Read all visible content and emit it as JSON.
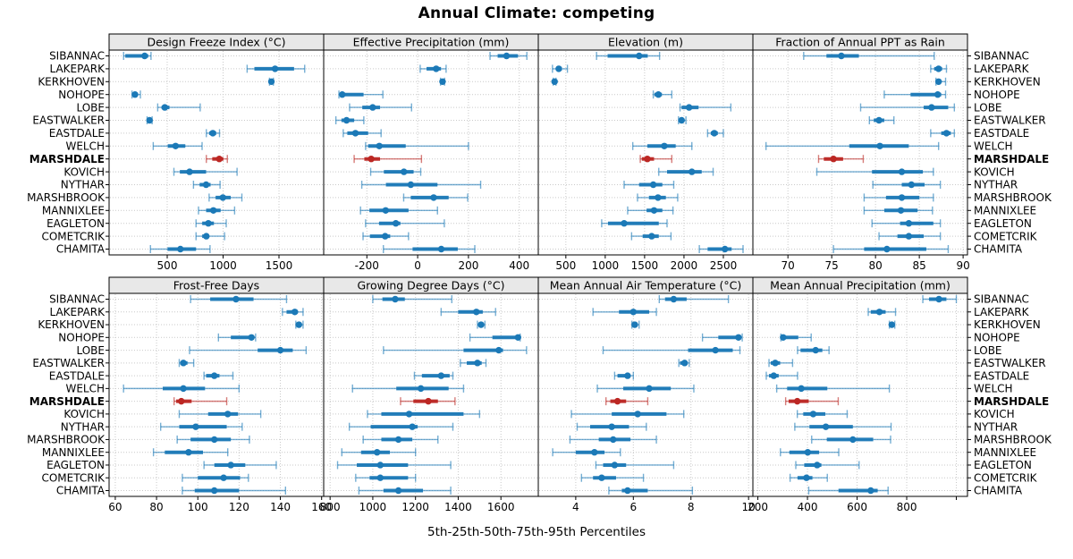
{
  "title": "Annual Climate: competing",
  "caption": "5th-25th-50th-75th-95th Percentiles",
  "percentile_labels": [
    "5th",
    "25th",
    "50th",
    "75th",
    "95th"
  ],
  "highlight_station": "MARSHDALE",
  "colors": {
    "series": "#1b79b7",
    "highlight": "#bc2723",
    "strip_bg": "#e8e8e8",
    "panel_border": "#000000",
    "grid": "#c9c9c9",
    "text": "#000000"
  },
  "chart_data": {
    "type": "dotplot-percentile-trellis",
    "layout": {
      "rows": 2,
      "cols": 4
    },
    "stations": [
      "SIBANNAC",
      "LAKEPARK",
      "KERKHOVEN",
      "NOHOPE",
      "LOBE",
      "EASTWALKER",
      "EASTDALE",
      "WELCH",
      "MARSHDALE",
      "KOVICH",
      "NYTHAR",
      "MARSHBROOK",
      "MANNIXLEE",
      "EAGLETON",
      "COMETCRIK",
      "CHAMITA"
    ],
    "panels": [
      {
        "title": "Design Freeze Index (°C)",
        "row": 0,
        "col": 0,
        "xlim": [
          -20,
          1900
        ],
        "xticks": [
          500,
          1000,
          1500
        ],
        "xtick_labels": [
          "500",
          "1000",
          "1500"
        ],
        "values": {
          "SIBANNAC": [
            110,
            125,
            298,
            330,
            355
          ],
          "LAKEPARK": [
            1215,
            1280,
            1465,
            1635,
            1730
          ],
          "KERKHOVEN": [
            1415,
            1425,
            1432,
            1440,
            1450
          ],
          "NOHOPE": [
            185,
            200,
            212,
            235,
            260
          ],
          "LOBE": [
            415,
            450,
            478,
            520,
            795
          ],
          "EASTWALKER": [
            320,
            335,
            342,
            350,
            365
          ],
          "EASTDALE": [
            850,
            875,
            908,
            938,
            968
          ],
          "WELCH": [
            375,
            505,
            575,
            662,
            812
          ],
          "MARSHDALE": [
            850,
            903,
            966,
            1003,
            1038
          ],
          "KOVICH": [
            560,
            613,
            700,
            848,
            1125
          ],
          "NYTHAR": [
            735,
            790,
            848,
            888,
            973
          ],
          "MARSHBROOK": [
            875,
            933,
            998,
            1068,
            1168
          ],
          "MANNIXLEE": [
            780,
            848,
            913,
            978,
            1103
          ],
          "EAGLETON": [
            758,
            813,
            868,
            918,
            1028
          ],
          "COMETCRIK": [
            758,
            813,
            850,
            873,
            1013
          ],
          "CHAMITA": [
            350,
            503,
            618,
            758,
            883
          ]
        }
      },
      {
        "title": "Effective Precipitation (mm)",
        "row": 0,
        "col": 1,
        "xlim": [
          -370,
          475
        ],
        "xticks": [
          -200,
          0,
          200,
          400
        ],
        "xtick_labels": [
          "-200",
          "0",
          "200",
          "400"
        ],
        "values": {
          "SIBANNAC": [
            285,
            315,
            350,
            395,
            430
          ],
          "LAKEPARK": [
            10,
            35,
            73,
            92,
            112
          ],
          "KERKHOVEN": [
            90,
            95,
            98,
            102,
            106
          ],
          "NOHOPE": [
            -310,
            -303,
            -297,
            -213,
            -137
          ],
          "LOBE": [
            -268,
            -218,
            -177,
            -148,
            -24
          ],
          "EASTWALKER": [
            -322,
            -300,
            -280,
            -250,
            -212
          ],
          "EASTDALE": [
            -293,
            -277,
            -245,
            -195,
            -144
          ],
          "WELCH": [
            -205,
            -195,
            -151,
            -47,
            200
          ],
          "MARSHDALE": [
            -250,
            -210,
            -183,
            -148,
            15
          ],
          "KOVICH": [
            -185,
            -133,
            -54,
            -16,
            12
          ],
          "NYTHAR": [
            -220,
            -125,
            -27,
            78,
            248
          ],
          "MARSHBROOK": [
            -55,
            -27,
            63,
            122,
            197
          ],
          "MANNIXLEE": [
            -225,
            -190,
            -126,
            -36,
            78
          ],
          "EAGLETON": [
            -205,
            -152,
            -86,
            -68,
            105
          ],
          "COMETCRIK": [
            -215,
            -188,
            -128,
            -108,
            -36
          ],
          "CHAMITA": [
            -135,
            -20,
            93,
            158,
            225
          ]
        }
      },
      {
        "title": "Elevation (m)",
        "row": 0,
        "col": 2,
        "xlim": [
          150,
          2875
        ],
        "xticks": [
          500,
          1000,
          1500,
          2000,
          2500
        ],
        "xtick_labels": [
          "500",
          "1000",
          "1500",
          "2000",
          "2500"
        ],
        "values": {
          "SIBANNAC": [
            890,
            1030,
            1430,
            1540,
            1690
          ],
          "LAKEPARK": [
            330,
            380,
            410,
            450,
            520
          ],
          "KERKHOVEN": [
            340,
            350,
            357,
            365,
            375
          ],
          "NOHOPE": [
            1610,
            1625,
            1675,
            1720,
            1845
          ],
          "LOBE": [
            1950,
            1970,
            2065,
            2185,
            2595
          ],
          "EASTWALKER": [
            1930,
            1950,
            1970,
            2000,
            2025
          ],
          "EASTDALE": [
            2300,
            2340,
            2385,
            2430,
            2500
          ],
          "WELCH": [
            1350,
            1535,
            1750,
            1895,
            2100
          ],
          "MARSHDALE": [
            1445,
            1465,
            1535,
            1620,
            1845
          ],
          "KOVICH": [
            1680,
            1785,
            2100,
            2225,
            2370
          ],
          "NYTHAR": [
            1240,
            1430,
            1610,
            1725,
            1870
          ],
          "MARSHBROOK": [
            1410,
            1555,
            1670,
            1770,
            1920
          ],
          "MANNIXLEE": [
            1285,
            1525,
            1620,
            1725,
            1860
          ],
          "EAGLETON": [
            955,
            1035,
            1240,
            1680,
            1785
          ],
          "COMETCRIK": [
            1335,
            1475,
            1590,
            1680,
            1835
          ],
          "CHAMITA": [
            2195,
            2300,
            2520,
            2605,
            2750
          ]
        }
      },
      {
        "title": "Fraction of Annual PPT as Rain",
        "row": 0,
        "col": 3,
        "xlim": [
          66,
          90.5
        ],
        "xticks": [
          70,
          75,
          80,
          85,
          90
        ],
        "xtick_labels": [
          "70",
          "75",
          "80",
          "85",
          "90"
        ],
        "values": {
          "SIBANNAC": [
            71.8,
            74.4,
            76.1,
            78.1,
            86.7
          ],
          "LAKEPARK": [
            86.3,
            86.7,
            87.2,
            87.6,
            88.1
          ],
          "KERKHOVEN": [
            86.9,
            87.0,
            87.2,
            87.4,
            88.0
          ],
          "NOHOPE": [
            81.0,
            84.0,
            87.1,
            87.5,
            88.0
          ],
          "LOBE": [
            78.3,
            85.5,
            86.4,
            88.3,
            89.0
          ],
          "EASTWALKER": [
            79.3,
            79.8,
            80.4,
            81.0,
            82.1
          ],
          "EASTDALE": [
            86.3,
            87.5,
            88.1,
            88.6,
            89.0
          ],
          "WELCH": [
            67.5,
            77.0,
            80.5,
            83.8,
            87.2
          ],
          "MARSHDALE": [
            73.5,
            74.1,
            75.2,
            76.3,
            78.6
          ],
          "KOVICH": [
            73.3,
            79.6,
            83.0,
            85.4,
            86.6
          ],
          "NYTHAR": [
            79.7,
            83.0,
            84.1,
            85.6,
            87.4
          ],
          "MARSHBROOK": [
            78.7,
            81.2,
            83.0,
            85.0,
            86.6
          ],
          "MANNIXLEE": [
            78.7,
            81.0,
            82.9,
            84.8,
            86.5
          ],
          "EAGLETON": [
            79.6,
            82.8,
            83.8,
            86.6,
            87.4
          ],
          "COMETCRIK": [
            80.4,
            82.5,
            83.8,
            85.5,
            87.4
          ],
          "CHAMITA": [
            75.2,
            78.7,
            81.3,
            85.8,
            88.3
          ]
        }
      },
      {
        "title": "Frost-Free Days",
        "row": 1,
        "col": 0,
        "xlim": [
          57,
          161
        ],
        "xticks": [
          60,
          80,
          100,
          120,
          140,
          160
        ],
        "xtick_labels": [
          "60",
          "80",
          "100",
          "120",
          "140",
          "160"
        ],
        "values": {
          "SIBANNAC": [
            96.5,
            106,
            118.5,
            127,
            143
          ],
          "LAKEPARK": [
            141,
            143,
            147,
            148.5,
            151
          ],
          "KERKHOVEN": [
            147.5,
            148,
            149,
            149.5,
            151
          ],
          "NOHOPE": [
            110,
            116,
            126,
            126.5,
            128
          ],
          "LOBE": [
            96,
            129,
            140,
            146,
            152.5
          ],
          "EASTWALKER": [
            91,
            91.5,
            93,
            95,
            98
          ],
          "EASTDALE": [
            103,
            104,
            108,
            110.5,
            117
          ],
          "WELCH": [
            64,
            83,
            93,
            103.5,
            120
          ],
          "MARSHDALE": [
            88.5,
            89.5,
            92,
            97,
            114
          ],
          "KOVICH": [
            91,
            105,
            114.5,
            119.5,
            130.5
          ],
          "NYTHAR": [
            82,
            91,
            99,
            114,
            121.5
          ],
          "MARSHBROOK": [
            90,
            96.5,
            108,
            116,
            125
          ],
          "MANNIXLEE": [
            78.5,
            84,
            95.5,
            102.5,
            114.5
          ],
          "EAGLETON": [
            103,
            108,
            116,
            123,
            138
          ],
          "COMETCRIK": [
            92.5,
            100,
            112.5,
            120.5,
            124.5
          ],
          "CHAMITA": [
            92.5,
            98.5,
            108,
            120,
            142.5
          ]
        }
      },
      {
        "title": "Growing Degree Days (°C)",
        "row": 1,
        "col": 1,
        "xlim": [
          770,
          1775
        ],
        "xticks": [
          800,
          1000,
          1200,
          1400,
          1600
        ],
        "xtick_labels": [
          "800",
          "1000",
          "1200",
          "1400",
          "1600"
        ],
        "values": {
          "SIBANNAC": [
            1000,
            1045,
            1105,
            1150,
            1370
          ],
          "LAKEPARK": [
            1320,
            1400,
            1485,
            1515,
            1575
          ],
          "KERKHOVEN": [
            1490,
            1498,
            1507,
            1515,
            1525
          ],
          "NOHOPE": [
            1455,
            1560,
            1680,
            1685,
            1690
          ],
          "LOBE": [
            1050,
            1425,
            1590,
            1610,
            1720
          ],
          "EASTWALKER": [
            1410,
            1440,
            1490,
            1510,
            1530
          ],
          "EASTDALE": [
            1195,
            1230,
            1320,
            1360,
            1375
          ],
          "WELCH": [
            905,
            1110,
            1225,
            1355,
            1425
          ],
          "MARSHDALE": [
            1130,
            1190,
            1260,
            1305,
            1385
          ],
          "KOVICH": [
            975,
            1040,
            1170,
            1425,
            1500
          ],
          "NYTHAR": [
            890,
            990,
            1185,
            1210,
            1375
          ],
          "MARSHBROOK": [
            955,
            1040,
            1120,
            1185,
            1305
          ],
          "MANNIXLEE": [
            855,
            945,
            1020,
            1080,
            1200
          ],
          "EAGLETON": [
            835,
            925,
            1035,
            1165,
            1365
          ],
          "COMETCRIK": [
            920,
            985,
            1035,
            1165,
            1200
          ],
          "CHAMITA": [
            935,
            1050,
            1120,
            1235,
            1365
          ]
        }
      },
      {
        "title": "Mean Annual Air Temperature (°C)",
        "row": 1,
        "col": 2,
        "xlim": [
          2.7,
          10.15
        ],
        "xticks": [
          4,
          6,
          8,
          10
        ],
        "xtick_labels": [
          "4",
          "6",
          "8",
          "10"
        ],
        "values": {
          "SIBANNAC": [
            6.9,
            7.1,
            7.4,
            7.85,
            9.3
          ],
          "LAKEPARK": [
            4.6,
            5.5,
            6.0,
            6.55,
            6.8
          ],
          "KERKHOVEN": [
            5.95,
            6.0,
            6.05,
            6.1,
            6.2
          ],
          "NOHOPE": [
            8.4,
            8.95,
            9.65,
            9.72,
            9.78
          ],
          "LOBE": [
            4.95,
            7.9,
            8.85,
            9.45,
            9.7
          ],
          "EASTWALKER": [
            7.58,
            7.62,
            7.78,
            7.88,
            7.94
          ],
          "EASTDALE": [
            5.35,
            5.45,
            5.8,
            5.9,
            6.0
          ],
          "WELCH": [
            4.75,
            5.65,
            6.55,
            7.3,
            8.1
          ],
          "MARSHDALE": [
            5.05,
            5.2,
            5.45,
            5.75,
            6.5
          ],
          "KOVICH": [
            3.85,
            5.25,
            6.15,
            7.15,
            7.75
          ],
          "NYTHAR": [
            4.05,
            4.5,
            5.25,
            5.85,
            6.45
          ],
          "MARSHBROOK": [
            3.8,
            4.8,
            5.3,
            5.9,
            6.8
          ],
          "MANNIXLEE": [
            3.2,
            4.0,
            4.65,
            5.0,
            5.55
          ],
          "EAGLETON": [
            4.7,
            4.95,
            5.35,
            5.75,
            7.4
          ],
          "COMETCRIK": [
            4.2,
            4.6,
            4.9,
            5.4,
            6.35
          ],
          "CHAMITA": [
            5.15,
            5.6,
            5.8,
            6.5,
            8.05
          ]
        }
      },
      {
        "title": "Mean Annual Precipitation (mm)",
        "row": 1,
        "col": 3,
        "xlim": [
          180,
          1045
        ],
        "xticks": [
          200,
          400,
          600,
          800,
          1000
        ],
        "xtick_labels": [
          "200",
          "400",
          "600",
          "800",
          ""
        ],
        "values": {
          "SIBANNAC": [
            865,
            890,
            930,
            960,
            1000
          ],
          "LAKEPARK": [
            645,
            655,
            690,
            715,
            755
          ],
          "KERKHOVEN": [
            730,
            735,
            740,
            745,
            752
          ],
          "NOHOPE": [
            293,
            297,
            302,
            363,
            415
          ],
          "LOBE": [
            360,
            372,
            433,
            460,
            487
          ],
          "EASTWALKER": [
            245,
            252,
            270,
            290,
            340
          ],
          "EASTDALE": [
            234,
            245,
            264,
            284,
            360
          ],
          "WELCH": [
            276,
            318,
            375,
            480,
            730
          ],
          "MARSHDALE": [
            312,
            324,
            359,
            405,
            524
          ],
          "KOVICH": [
            359,
            383,
            423,
            472,
            560
          ],
          "NYTHAR": [
            349,
            408,
            474,
            583,
            737
          ],
          "MARSHBROOK": [
            417,
            478,
            583,
            665,
            735
          ],
          "MANNIXLEE": [
            291,
            327,
            401,
            447,
            526
          ],
          "EAGLETON": [
            353,
            387,
            439,
            456,
            608
          ],
          "COMETCRIK": [
            330,
            360,
            396,
            420,
            480
          ],
          "CHAMITA": [
            405,
            525,
            655,
            683,
            725
          ]
        }
      }
    ]
  }
}
